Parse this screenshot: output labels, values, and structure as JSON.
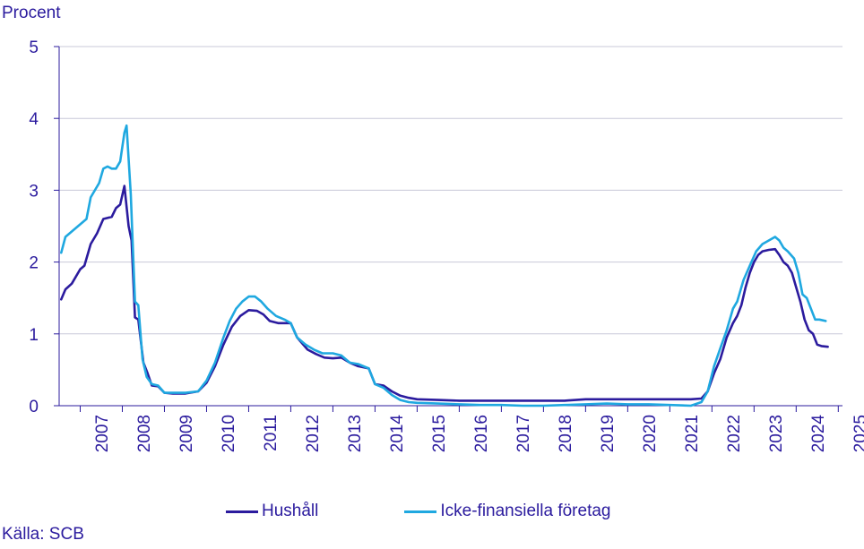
{
  "chart_data": {
    "type": "line",
    "unit_label": "Procent",
    "source": "Källa: SCB",
    "ylim": [
      0,
      5
    ],
    "y_ticks": [
      "0",
      "1",
      "2",
      "3",
      "4",
      "5"
    ],
    "x_range": [
      2006.5,
      2025.1
    ],
    "x_ticks": [
      "2007",
      "2008",
      "2009",
      "2010",
      "2011",
      "2012",
      "2013",
      "2014",
      "2015",
      "2016",
      "2017",
      "2018",
      "2019",
      "2020",
      "2021",
      "2022",
      "2023",
      "2024",
      "2025"
    ],
    "grid": true,
    "legend_position": "bottom",
    "series": [
      {
        "name": "Hushåll",
        "color": "#2b1b9e",
        "points": [
          [
            2006.55,
            1.48
          ],
          [
            2006.65,
            1.62
          ],
          [
            2006.8,
            1.7
          ],
          [
            2007.0,
            1.9
          ],
          [
            2007.1,
            1.95
          ],
          [
            2007.25,
            2.25
          ],
          [
            2007.4,
            2.4
          ],
          [
            2007.55,
            2.6
          ],
          [
            2007.75,
            2.63
          ],
          [
            2007.85,
            2.75
          ],
          [
            2007.95,
            2.8
          ],
          [
            2008.05,
            3.06
          ],
          [
            2008.15,
            2.5
          ],
          [
            2008.22,
            2.3
          ],
          [
            2008.3,
            1.23
          ],
          [
            2008.38,
            1.2
          ],
          [
            2008.5,
            0.6
          ],
          [
            2008.6,
            0.45
          ],
          [
            2008.7,
            0.28
          ],
          [
            2008.85,
            0.27
          ],
          [
            2009.0,
            0.18
          ],
          [
            2009.2,
            0.17
          ],
          [
            2009.5,
            0.17
          ],
          [
            2009.8,
            0.2
          ],
          [
            2010.0,
            0.32
          ],
          [
            2010.2,
            0.55
          ],
          [
            2010.4,
            0.85
          ],
          [
            2010.6,
            1.1
          ],
          [
            2010.8,
            1.25
          ],
          [
            2011.0,
            1.33
          ],
          [
            2011.2,
            1.32
          ],
          [
            2011.35,
            1.27
          ],
          [
            2011.5,
            1.18
          ],
          [
            2011.7,
            1.15
          ],
          [
            2012.0,
            1.15
          ],
          [
            2012.15,
            0.95
          ],
          [
            2012.4,
            0.78
          ],
          [
            2012.6,
            0.72
          ],
          [
            2012.8,
            0.67
          ],
          [
            2013.0,
            0.66
          ],
          [
            2013.2,
            0.67
          ],
          [
            2013.4,
            0.6
          ],
          [
            2013.6,
            0.55
          ],
          [
            2013.85,
            0.52
          ],
          [
            2014.0,
            0.3
          ],
          [
            2014.2,
            0.28
          ],
          [
            2014.4,
            0.2
          ],
          [
            2014.6,
            0.14
          ],
          [
            2014.8,
            0.11
          ],
          [
            2015.0,
            0.09
          ],
          [
            2015.5,
            0.08
          ],
          [
            2016.0,
            0.07
          ],
          [
            2016.5,
            0.07
          ],
          [
            2017.0,
            0.07
          ],
          [
            2017.5,
            0.07
          ],
          [
            2018.0,
            0.07
          ],
          [
            2018.5,
            0.07
          ],
          [
            2019.0,
            0.09
          ],
          [
            2019.5,
            0.09
          ],
          [
            2020.0,
            0.09
          ],
          [
            2020.5,
            0.09
          ],
          [
            2021.0,
            0.09
          ],
          [
            2021.5,
            0.09
          ],
          [
            2021.75,
            0.1
          ],
          [
            2021.9,
            0.2
          ],
          [
            2022.05,
            0.45
          ],
          [
            2022.2,
            0.65
          ],
          [
            2022.35,
            0.95
          ],
          [
            2022.5,
            1.15
          ],
          [
            2022.6,
            1.25
          ],
          [
            2022.7,
            1.4
          ],
          [
            2022.8,
            1.65
          ],
          [
            2022.9,
            1.85
          ],
          [
            2023.0,
            2.0
          ],
          [
            2023.1,
            2.1
          ],
          [
            2023.2,
            2.15
          ],
          [
            2023.35,
            2.17
          ],
          [
            2023.5,
            2.18
          ],
          [
            2023.6,
            2.1
          ],
          [
            2023.7,
            2.0
          ],
          [
            2023.8,
            1.95
          ],
          [
            2023.9,
            1.85
          ],
          [
            2024.0,
            1.65
          ],
          [
            2024.1,
            1.45
          ],
          [
            2024.2,
            1.2
          ],
          [
            2024.3,
            1.05
          ],
          [
            2024.4,
            1.0
          ],
          [
            2024.5,
            0.85
          ],
          [
            2024.6,
            0.83
          ],
          [
            2024.75,
            0.82
          ]
        ]
      },
      {
        "name": "Icke-finansiella företag",
        "color": "#1fa8e0",
        "points": [
          [
            2006.55,
            2.13
          ],
          [
            2006.65,
            2.35
          ],
          [
            2006.75,
            2.4
          ],
          [
            2006.85,
            2.45
          ],
          [
            2006.95,
            2.5
          ],
          [
            2007.05,
            2.55
          ],
          [
            2007.15,
            2.6
          ],
          [
            2007.25,
            2.9
          ],
          [
            2007.35,
            3.0
          ],
          [
            2007.45,
            3.1
          ],
          [
            2007.55,
            3.3
          ],
          [
            2007.65,
            3.33
          ],
          [
            2007.75,
            3.3
          ],
          [
            2007.85,
            3.3
          ],
          [
            2007.95,
            3.4
          ],
          [
            2008.05,
            3.8
          ],
          [
            2008.1,
            3.9
          ],
          [
            2008.2,
            2.95
          ],
          [
            2008.3,
            1.45
          ],
          [
            2008.38,
            1.4
          ],
          [
            2008.48,
            0.65
          ],
          [
            2008.58,
            0.4
          ],
          [
            2008.7,
            0.3
          ],
          [
            2008.85,
            0.28
          ],
          [
            2009.0,
            0.18
          ],
          [
            2009.2,
            0.18
          ],
          [
            2009.5,
            0.18
          ],
          [
            2009.8,
            0.2
          ],
          [
            2010.0,
            0.35
          ],
          [
            2010.2,
            0.6
          ],
          [
            2010.4,
            0.95
          ],
          [
            2010.55,
            1.18
          ],
          [
            2010.7,
            1.35
          ],
          [
            2010.85,
            1.45
          ],
          [
            2011.0,
            1.52
          ],
          [
            2011.15,
            1.52
          ],
          [
            2011.3,
            1.45
          ],
          [
            2011.45,
            1.35
          ],
          [
            2011.65,
            1.25
          ],
          [
            2011.85,
            1.2
          ],
          [
            2012.0,
            1.15
          ],
          [
            2012.15,
            0.95
          ],
          [
            2012.35,
            0.85
          ],
          [
            2012.55,
            0.78
          ],
          [
            2012.75,
            0.73
          ],
          [
            2013.0,
            0.73
          ],
          [
            2013.2,
            0.7
          ],
          [
            2013.4,
            0.6
          ],
          [
            2013.6,
            0.58
          ],
          [
            2013.85,
            0.52
          ],
          [
            2014.0,
            0.3
          ],
          [
            2014.2,
            0.25
          ],
          [
            2014.4,
            0.15
          ],
          [
            2014.6,
            0.08
          ],
          [
            2014.8,
            0.05
          ],
          [
            2015.0,
            0.04
          ],
          [
            2015.5,
            0.03
          ],
          [
            2016.0,
            0.02
          ],
          [
            2016.5,
            0.01
          ],
          [
            2017.0,
            0.01
          ],
          [
            2017.5,
            0.0
          ],
          [
            2018.0,
            0.0
          ],
          [
            2018.5,
            0.01
          ],
          [
            2019.0,
            0.02
          ],
          [
            2019.5,
            0.03
          ],
          [
            2020.0,
            0.02
          ],
          [
            2020.5,
            0.02
          ],
          [
            2021.0,
            0.01
          ],
          [
            2021.5,
            0.0
          ],
          [
            2021.75,
            0.05
          ],
          [
            2021.9,
            0.2
          ],
          [
            2022.05,
            0.55
          ],
          [
            2022.2,
            0.8
          ],
          [
            2022.35,
            1.05
          ],
          [
            2022.5,
            1.35
          ],
          [
            2022.6,
            1.45
          ],
          [
            2022.75,
            1.75
          ],
          [
            2022.9,
            1.95
          ],
          [
            2023.05,
            2.15
          ],
          [
            2023.2,
            2.25
          ],
          [
            2023.35,
            2.3
          ],
          [
            2023.5,
            2.35
          ],
          [
            2023.6,
            2.3
          ],
          [
            2023.7,
            2.2
          ],
          [
            2023.8,
            2.15
          ],
          [
            2023.95,
            2.05
          ],
          [
            2024.05,
            1.85
          ],
          [
            2024.15,
            1.55
          ],
          [
            2024.25,
            1.5
          ],
          [
            2024.35,
            1.35
          ],
          [
            2024.45,
            1.2
          ],
          [
            2024.55,
            1.2
          ],
          [
            2024.7,
            1.18
          ]
        ]
      }
    ]
  }
}
